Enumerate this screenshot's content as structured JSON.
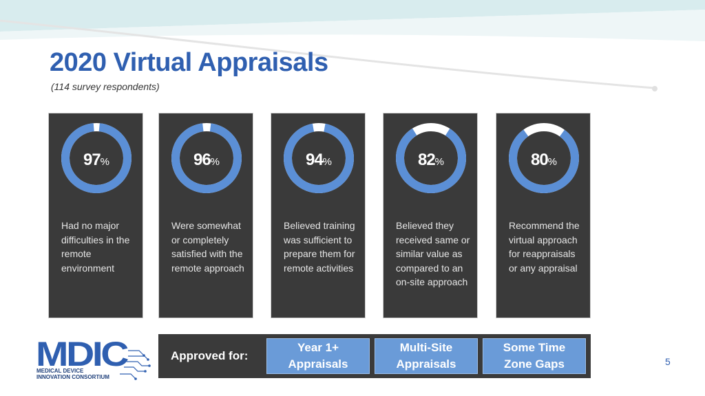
{
  "slide": {
    "title": "2020 Virtual Appraisals",
    "subtitle": "(114 survey respondents)",
    "page_number": "5"
  },
  "stats": [
    {
      "value": 97,
      "symbol": "%",
      "description": "Had no major difficulties in the remote environment"
    },
    {
      "value": 96,
      "symbol": "%",
      "description": "Were somewhat or completely satisfied with the remote approach"
    },
    {
      "value": 94,
      "symbol": "%",
      "description": "Believed training was sufficient to prepare them for remote activities"
    },
    {
      "value": 82,
      "symbol": "%",
      "description": "Believed they received same or similar value as compared to an on-site approach"
    },
    {
      "value": 80,
      "symbol": "%",
      "description": "Recommend the virtual approach for reappraisals or any appraisal"
    }
  ],
  "approved": {
    "label": "Approved for:",
    "items": [
      {
        "line1": "Year 1+",
        "line2": "Appraisals"
      },
      {
        "line1": "Multi-Site",
        "line2": "Appraisals"
      },
      {
        "line1": "Some Time",
        "line2": "Zone Gaps"
      }
    ]
  },
  "logo": {
    "text": "MDIC",
    "line1": "MEDICAL DEVICE",
    "line2": "INNOVATION CONSORTIUM"
  },
  "colors": {
    "title": "#2f5fb0",
    "card": "#3a3a3a",
    "ring_fill": "#5b8fd6",
    "ring_track": "#ffffff",
    "pill": "#6a9bd8",
    "logo": "#2f5fb0"
  }
}
